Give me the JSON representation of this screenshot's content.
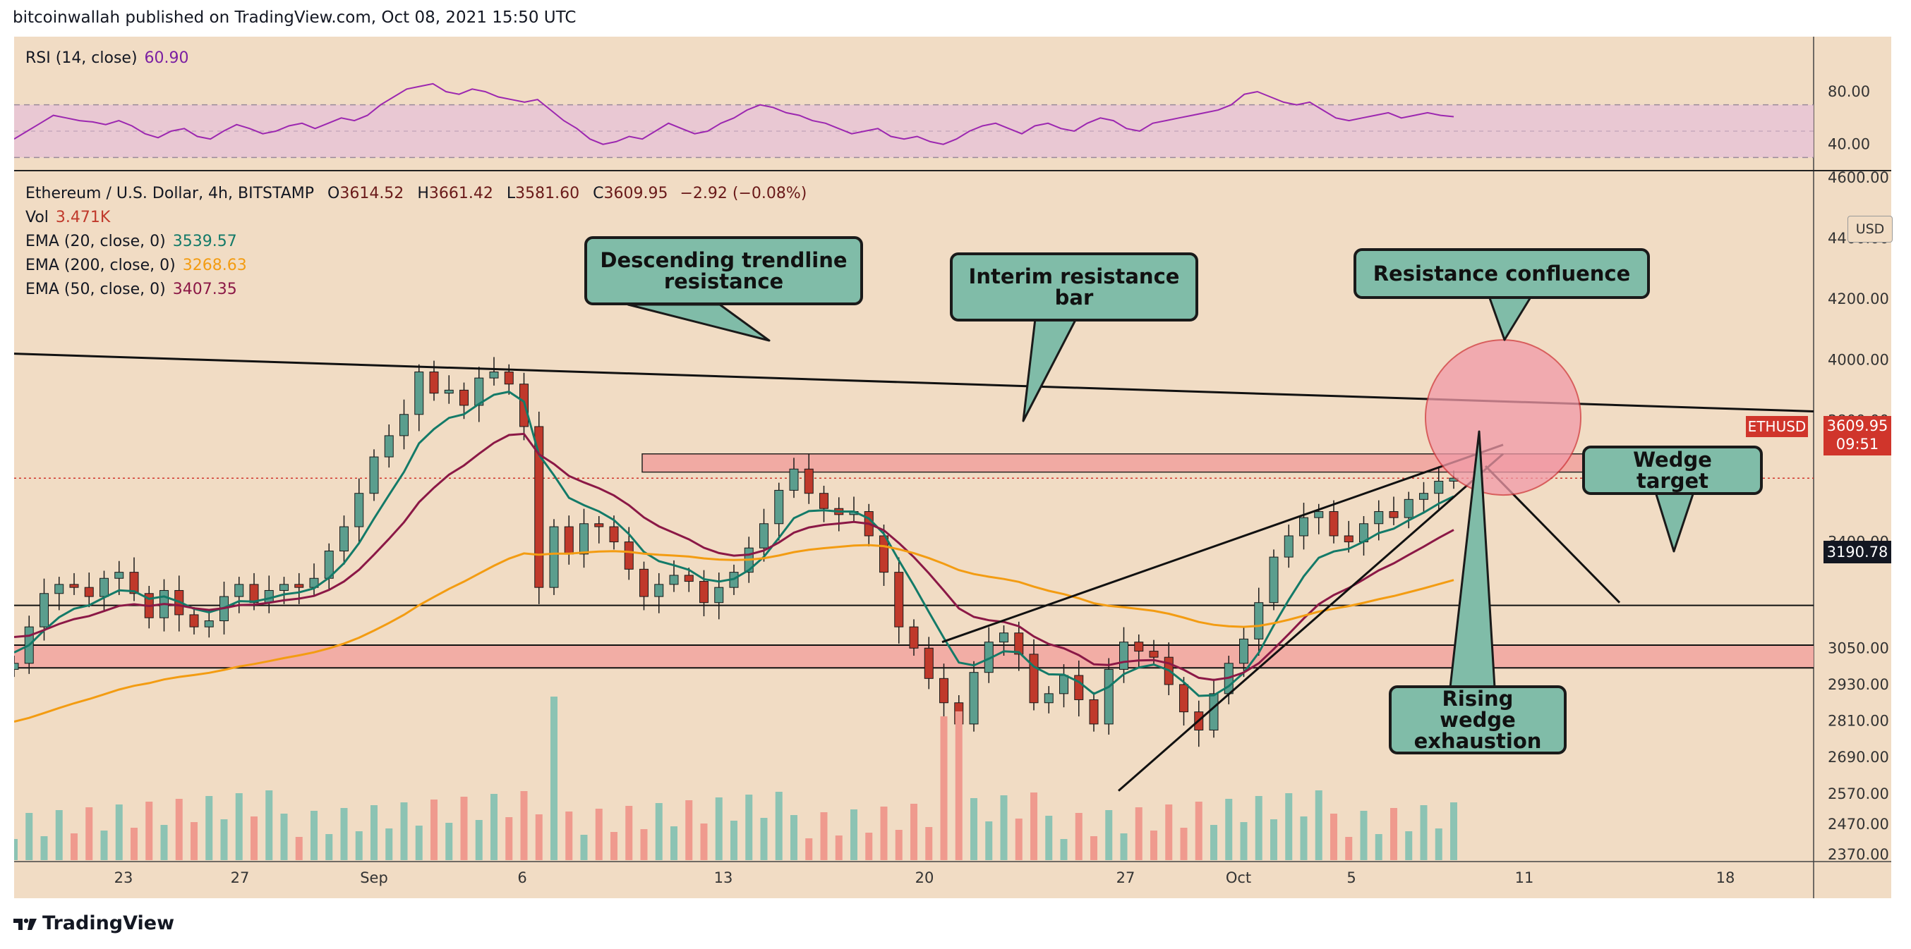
{
  "header": {
    "publisher_line": "bitcoinwallah published on TradingView.com, Oct 08, 2021 15:50 UTC"
  },
  "rsi_legend": {
    "label": "RSI (14, close)",
    "value": "60.90",
    "value_color": "#7b1fa2"
  },
  "main_legend": {
    "symbol": "Ethereum / U.S. Dollar, 4h, BITSTAMP",
    "open_label": "O",
    "open": "3614.52",
    "high_label": "H",
    "high": "3661.42",
    "low_label": "L",
    "low": "3581.60",
    "close_label": "C",
    "close": "3609.95",
    "change": "−2.92 (−0.08%)",
    "vol_label": "Vol",
    "vol_value": "3.471K",
    "ema20_label": "EMA (20, close, 0)",
    "ema20_value": "3539.57",
    "ema200_label": "EMA (200, close, 0)",
    "ema200_value": "3268.63",
    "ema50_label": "EMA (50, close, 0)",
    "ema50_value": "3407.35"
  },
  "colors": {
    "background": "#f1dcc4",
    "up": "#5b9e8e",
    "down": "#c0392b",
    "ema20": "#137a68",
    "ema50": "#8b1846",
    "ema200": "#f39c12",
    "rsi": "#9c27b0",
    "zone": "#f2a5a0",
    "callout": "#80bca8"
  },
  "currency_label": "USD",
  "price_tags": {
    "ticker": "ETHUSD",
    "last_price": "3609.95",
    "countdown": "09:51",
    "level": "3190.78"
  },
  "callouts": {
    "descending": "Descending trendline resistance",
    "interim": "Interim resistance bar",
    "confluence": "Resistance confluence",
    "wedge_target": "Wedge target",
    "rising_wedge": "Rising wedge exhaustion"
  },
  "footer": {
    "brand": "TradingView"
  },
  "chart_data": [
    {
      "type": "line",
      "title": "RSI (14, close)",
      "ylim": [
        20,
        95
      ],
      "y_ticks": [
        "80.00",
        "40.00"
      ],
      "band": [
        30,
        70
      ],
      "series": [
        {
          "name": "RSI",
          "values": [
            44,
            50,
            56,
            62,
            60,
            58,
            57,
            55,
            58,
            54,
            48,
            45,
            50,
            52,
            46,
            44,
            50,
            55,
            52,
            48,
            50,
            54,
            56,
            52,
            56,
            60,
            58,
            62,
            70,
            76,
            82,
            84,
            86,
            80,
            78,
            82,
            80,
            76,
            74,
            72,
            74,
            66,
            58,
            52,
            44,
            40,
            42,
            46,
            44,
            50,
            56,
            52,
            48,
            50,
            56,
            60,
            66,
            70,
            68,
            64,
            62,
            58,
            56,
            52,
            48,
            50,
            52,
            46,
            44,
            46,
            42,
            40,
            44,
            50,
            54,
            56,
            52,
            48,
            54,
            56,
            52,
            50,
            56,
            60,
            58,
            52,
            50,
            56,
            58,
            60,
            62,
            64,
            66,
            70,
            78,
            80,
            76,
            72,
            70,
            72,
            66,
            60,
            58,
            60,
            62,
            64,
            60,
            62,
            64,
            62,
            61
          ]
        }
      ]
    },
    {
      "type": "candlestick",
      "title": "Ethereum / U.S. Dollar, 4h, BITSTAMP",
      "ylim": [
        2370,
        4600
      ],
      "y_ticks": [
        "4600.00",
        "4400.00",
        "4200.00",
        "4000.00",
        "3800.00",
        "3400.00",
        "3050.00",
        "2930.00",
        "2810.00",
        "2690.00",
        "2570.00",
        "2470.00",
        "2370.00"
      ],
      "x_ticks": [
        "23",
        "27",
        "Sep",
        "6",
        "13",
        "20",
        "27",
        "Oct",
        "5",
        "11",
        "18"
      ],
      "close_series": [
        3000,
        3120,
        3230,
        3260,
        3250,
        3220,
        3280,
        3300,
        3230,
        3150,
        3240,
        3160,
        3120,
        3140,
        3220,
        3260,
        3200,
        3240,
        3260,
        3250,
        3280,
        3370,
        3450,
        3560,
        3680,
        3750,
        3820,
        3960,
        3890,
        3900,
        3850,
        3940,
        3960,
        3920,
        3780,
        3250,
        3450,
        3360,
        3460,
        3450,
        3400,
        3310,
        3220,
        3260,
        3290,
        3270,
        3200,
        3250,
        3300,
        3380,
        3460,
        3570,
        3640,
        3560,
        3510,
        3490,
        3500,
        3420,
        3300,
        3120,
        3050,
        2950,
        2870,
        2800,
        2970,
        3070,
        3100,
        3030,
        2870,
        2900,
        2960,
        2880,
        2800,
        2980,
        3070,
        3040,
        3020,
        2930,
        2840,
        2780,
        2900,
        3000,
        3080,
        3200,
        3350,
        3420,
        3480,
        3500,
        3420,
        3400,
        3460,
        3500,
        3480,
        3540,
        3560,
        3600,
        3610
      ],
      "series": [
        {
          "name": "EMA (20, close, 0)",
          "last": 3539.57
        },
        {
          "name": "EMA (50, close, 0)",
          "last": 3407.35
        },
        {
          "name": "EMA (200, close, 0)",
          "last": 3268.63
        }
      ],
      "last_price": 3609.95,
      "horizontal_level": 3190.78
    }
  ]
}
